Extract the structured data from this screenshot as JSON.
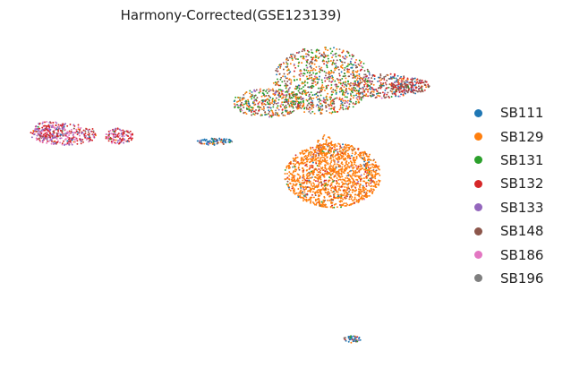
{
  "chart_data": {
    "type": "scatter",
    "title": "Harmony-Corrected(GSE123139)",
    "xlabel": "",
    "ylabel": "",
    "grid": false,
    "axes_visible": false,
    "legend_position": "right",
    "series": [
      {
        "name": "SB111",
        "color": "#1f77b4"
      },
      {
        "name": "SB129",
        "color": "#ff7f0e"
      },
      {
        "name": "SB131",
        "color": "#2ca02c"
      },
      {
        "name": "SB132",
        "color": "#d62728"
      },
      {
        "name": "SB133",
        "color": "#9467bd"
      },
      {
        "name": "SB148",
        "color": "#8c564b"
      },
      {
        "name": "SB186",
        "color": "#e377c2"
      },
      {
        "name": "SB196",
        "color": "#7f7f7f"
      }
    ]
  }
}
